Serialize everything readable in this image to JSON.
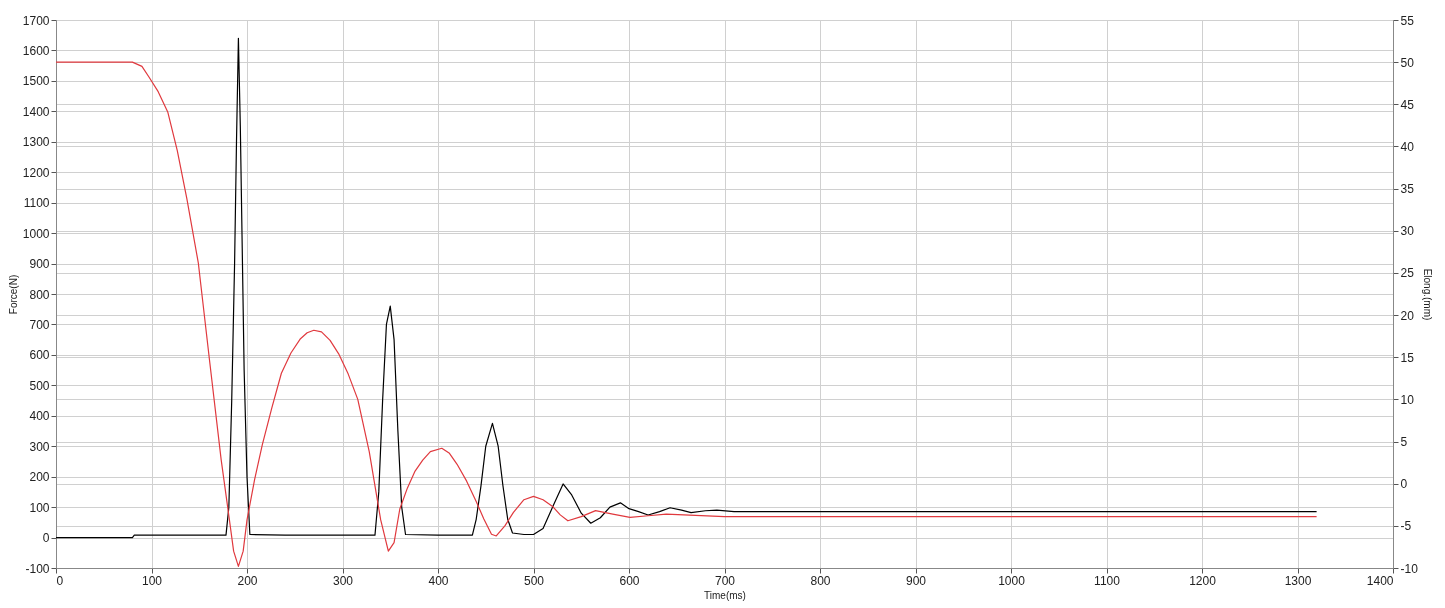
{
  "chart_data": {
    "type": "line",
    "xlabel": "Time(ms)",
    "ylabel": "Force(N)",
    "y2label": "Elong.(mm)",
    "xlim": [
      0,
      1400
    ],
    "xticks": [
      0,
      100,
      200,
      300,
      400,
      500,
      600,
      700,
      800,
      900,
      1000,
      1100,
      1200,
      1300,
      1400
    ],
    "ylim": [
      -100,
      1700
    ],
    "yticks": [
      -100,
      0,
      100,
      200,
      300,
      400,
      500,
      600,
      700,
      800,
      900,
      1000,
      1100,
      1200,
      1300,
      1400,
      1500,
      1600,
      1700
    ],
    "y2lim": [
      -10,
      55
    ],
    "y2ticks": [
      -10,
      -5,
      0,
      5,
      10,
      15,
      20,
      25,
      30,
      35,
      40,
      45,
      50,
      55
    ],
    "grid": true,
    "marker": "none",
    "line_style": "solid",
    "series": [
      {
        "color": "#000000",
        "x": [
          0,
          40,
          80,
          82,
          120,
          178,
          181,
          184,
          187,
          189,
          191,
          193,
          195,
          197,
          200,
          203,
          240,
          300,
          334,
          338,
          342,
          346,
          350,
          354,
          358,
          362,
          366,
          400,
          436,
          440,
          445,
          450,
          457,
          463,
          468,
          473,
          478,
          490,
          500,
          510,
          520,
          531,
          540,
          550,
          560,
          570,
          580,
          591,
          600,
          610,
          620,
          632,
          643,
          655,
          665,
          680,
          692,
          710,
          800,
          1000,
          1200,
          1320
        ],
        "values": [
          0,
          0,
          0,
          8,
          8,
          8,
          100,
          450,
          900,
          1300,
          1640,
          1350,
          950,
          550,
          200,
          10,
          8,
          8,
          8,
          150,
          450,
          700,
          760,
          650,
          350,
          100,
          10,
          8,
          8,
          60,
          170,
          300,
          375,
          300,
          170,
          60,
          15,
          10,
          10,
          30,
          100,
          176,
          140,
          80,
          47,
          65,
          100,
          114,
          95,
          85,
          74,
          85,
          98,
          90,
          82,
          88,
          90,
          85,
          85,
          85,
          85,
          85
        ]
      },
      {
        "color": "#e0393e",
        "axis": "y2",
        "x": [
          0,
          80,
          90,
          97,
          107,
          117,
          127,
          137,
          149,
          161,
          173,
          181,
          186,
          191,
          196,
          200,
          208,
          216,
          226,
          236,
          246,
          256,
          263,
          270,
          278,
          287,
          296,
          306,
          316,
          328,
          340,
          348,
          354,
          360,
          368,
          376,
          384,
          392,
          404,
          412,
          420,
          430,
          440,
          448,
          456,
          461,
          470,
          479,
          490,
          500,
          510,
          520,
          528,
          536,
          550,
          565,
          583,
          601,
          620,
          639,
          700,
          800,
          1000,
          1200,
          1320
        ],
        "values": [
          50,
          50,
          49.5,
          48.3,
          46.5,
          44.1,
          39.5,
          33.8,
          26.2,
          14.4,
          2.8,
          -3.8,
          -8,
          -9.8,
          -8,
          -4.3,
          0.5,
          4.6,
          9,
          13.1,
          15.5,
          17.2,
          17.9,
          18.2,
          18,
          17,
          15.4,
          13,
          10,
          3.8,
          -4.3,
          -8,
          -7,
          -3,
          -0.5,
          1.5,
          2.8,
          3.8,
          4.2,
          3.6,
          2.3,
          0.3,
          -2.1,
          -4.2,
          -6,
          -6.2,
          -5,
          -3.4,
          -1.9,
          -1.5,
          -1.9,
          -2.7,
          -3.7,
          -4.4,
          -3.9,
          -3.2,
          -3.6,
          -4.0,
          -3.8,
          -3.6,
          -3.9,
          -3.9,
          -3.9,
          -3.9,
          -3.9
        ]
      }
    ]
  }
}
